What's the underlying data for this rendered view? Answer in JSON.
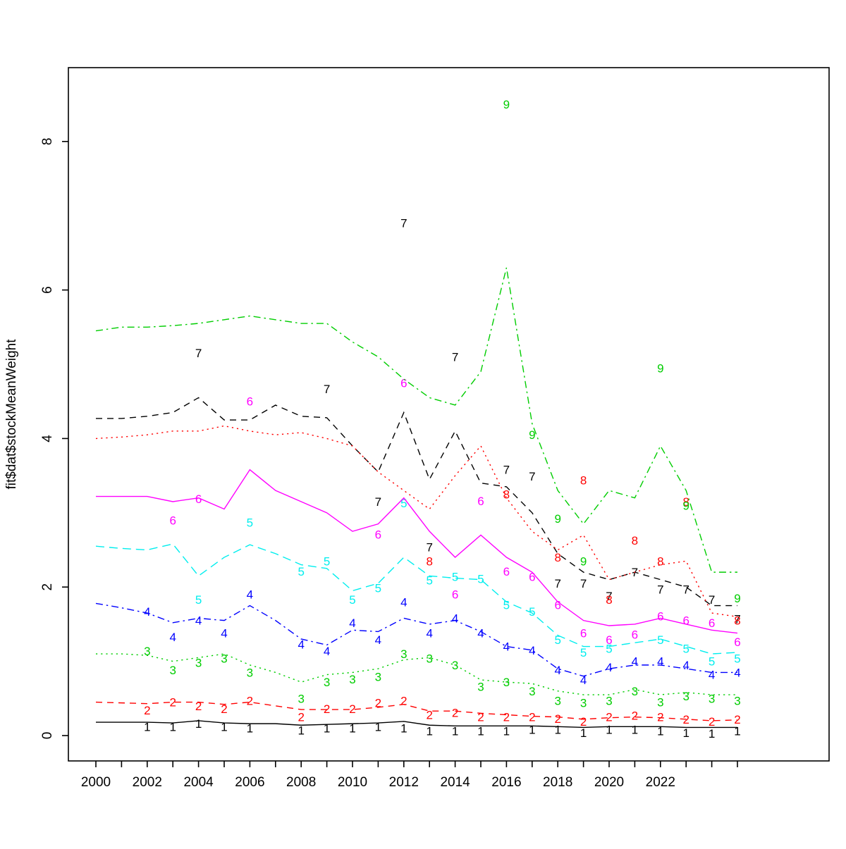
{
  "chart_data": {
    "type": "line",
    "title": "",
    "xlabel": "",
    "ylabel": "fit$dat$stockMeanWeight",
    "axis_color": "#000000",
    "background": "#ffffff",
    "grid": false,
    "legend": "none (series identified by plotted digit labels 1-9)",
    "x_start": 2000,
    "x_end": 2025,
    "xtick_labels": [
      2000,
      2002,
      2004,
      2006,
      2008,
      2010,
      2012,
      2014,
      2016,
      2018,
      2020,
      2022
    ],
    "yticks": [
      0,
      2,
      4,
      6,
      8
    ],
    "xlim": [
      1999,
      2026.5
    ],
    "ylim": [
      -0.35,
      9.0
    ],
    "series": [
      {
        "name": "age-1",
        "label": "1",
        "color": "#000000",
        "linestyle": "solid",
        "line": [
          0.18,
          0.18,
          0.18,
          0.17,
          0.2,
          0.17,
          0.16,
          0.16,
          0.14,
          0.15,
          0.16,
          0.17,
          0.19,
          0.14,
          0.13,
          0.13,
          0.13,
          0.13,
          0.12,
          0.11,
          0.12,
          0.12,
          0.12,
          0.11,
          0.11,
          0.11
        ],
        "obs": [
          [
            2002,
            0.12
          ],
          [
            2003,
            0.12
          ],
          [
            2004,
            0.16
          ],
          [
            2005,
            0.12
          ],
          [
            2006,
            0.1
          ],
          [
            2008,
            0.07
          ],
          [
            2009,
            0.1
          ],
          [
            2010,
            0.1
          ],
          [
            2011,
            0.12
          ],
          [
            2012,
            0.1
          ],
          [
            2013,
            0.06
          ],
          [
            2014,
            0.06
          ],
          [
            2015,
            0.06
          ],
          [
            2016,
            0.06
          ],
          [
            2017,
            0.08
          ],
          [
            2018,
            0.08
          ],
          [
            2019,
            0.04
          ],
          [
            2020,
            0.08
          ],
          [
            2021,
            0.08
          ],
          [
            2022,
            0.06
          ],
          [
            2023,
            0.04
          ],
          [
            2024,
            0.03
          ],
          [
            2025,
            0.06
          ]
        ]
      },
      {
        "name": "age-2",
        "label": "2",
        "color": "#FF0000",
        "linestyle": "dashed",
        "line": [
          0.45,
          0.44,
          0.43,
          0.45,
          0.45,
          0.42,
          0.45,
          0.4,
          0.35,
          0.35,
          0.35,
          0.38,
          0.42,
          0.33,
          0.33,
          0.3,
          0.28,
          0.26,
          0.25,
          0.22,
          0.24,
          0.25,
          0.24,
          0.22,
          0.2,
          0.21
        ],
        "obs": [
          [
            2002,
            0.34
          ],
          [
            2003,
            0.45
          ],
          [
            2004,
            0.4
          ],
          [
            2005,
            0.36
          ],
          [
            2006,
            0.47
          ],
          [
            2008,
            0.25
          ],
          [
            2009,
            0.36
          ],
          [
            2010,
            0.36
          ],
          [
            2011,
            0.44
          ],
          [
            2012,
            0.47
          ],
          [
            2013,
            0.28
          ],
          [
            2014,
            0.31
          ],
          [
            2015,
            0.25
          ],
          [
            2016,
            0.25
          ],
          [
            2017,
            0.25
          ],
          [
            2018,
            0.23
          ],
          [
            2019,
            0.19
          ],
          [
            2020,
            0.25
          ],
          [
            2021,
            0.27
          ],
          [
            2022,
            0.25
          ],
          [
            2023,
            0.22
          ],
          [
            2024,
            0.19
          ],
          [
            2025,
            0.22
          ]
        ]
      },
      {
        "name": "age-3",
        "label": "3",
        "color": "#00CD00",
        "linestyle": "dotted",
        "line": [
          1.1,
          1.1,
          1.08,
          1.0,
          1.05,
          1.1,
          0.95,
          0.85,
          0.72,
          0.82,
          0.85,
          0.9,
          1.02,
          1.05,
          0.95,
          0.75,
          0.72,
          0.7,
          0.6,
          0.55,
          0.55,
          0.62,
          0.55,
          0.58,
          0.55,
          0.55
        ],
        "obs": [
          [
            2002,
            1.14
          ],
          [
            2003,
            0.88
          ],
          [
            2004,
            0.98
          ],
          [
            2005,
            1.04
          ],
          [
            2006,
            0.85
          ],
          [
            2008,
            0.5
          ],
          [
            2009,
            0.72
          ],
          [
            2010,
            0.76
          ],
          [
            2011,
            0.79
          ],
          [
            2012,
            1.1
          ],
          [
            2013,
            1.04
          ],
          [
            2014,
            0.95
          ],
          [
            2015,
            0.66
          ],
          [
            2016,
            0.72
          ],
          [
            2017,
            0.6
          ],
          [
            2018,
            0.47
          ],
          [
            2019,
            0.44
          ],
          [
            2020,
            0.47
          ],
          [
            2021,
            0.6
          ],
          [
            2022,
            0.45
          ],
          [
            2023,
            0.53
          ],
          [
            2024,
            0.5
          ],
          [
            2025,
            0.47
          ]
        ]
      },
      {
        "name": "age-4",
        "label": "4",
        "color": "#0000FF",
        "linestyle": "dashdot",
        "line": [
          1.78,
          1.72,
          1.65,
          1.52,
          1.58,
          1.55,
          1.75,
          1.55,
          1.3,
          1.22,
          1.42,
          1.4,
          1.58,
          1.5,
          1.55,
          1.4,
          1.2,
          1.15,
          0.9,
          0.8,
          0.9,
          0.95,
          0.95,
          0.9,
          0.85,
          0.85
        ],
        "obs": [
          [
            2002,
            1.67
          ],
          [
            2003,
            1.33
          ],
          [
            2004,
            1.55
          ],
          [
            2005,
            1.38
          ],
          [
            2006,
            1.9
          ],
          [
            2008,
            1.23
          ],
          [
            2009,
            1.14
          ],
          [
            2010,
            1.52
          ],
          [
            2011,
            1.29
          ],
          [
            2012,
            1.8
          ],
          [
            2013,
            1.38
          ],
          [
            2014,
            1.58
          ],
          [
            2015,
            1.38
          ],
          [
            2016,
            1.2
          ],
          [
            2017,
            1.15
          ],
          [
            2018,
            0.88
          ],
          [
            2019,
            0.75
          ],
          [
            2020,
            0.92
          ],
          [
            2021,
            1.0
          ],
          [
            2022,
            1.0
          ],
          [
            2023,
            0.95
          ],
          [
            2024,
            0.82
          ],
          [
            2025,
            0.85
          ]
        ]
      },
      {
        "name": "age-5",
        "label": "5",
        "color": "#00EEEE",
        "linestyle": "longdash",
        "line": [
          2.55,
          2.52,
          2.5,
          2.58,
          2.15,
          2.4,
          2.57,
          2.45,
          2.3,
          2.25,
          1.95,
          2.05,
          2.4,
          2.15,
          2.12,
          2.1,
          1.8,
          1.65,
          1.35,
          1.2,
          1.2,
          1.25,
          1.3,
          1.2,
          1.1,
          1.12
        ],
        "obs": [
          [
            2004,
            1.83
          ],
          [
            2006,
            2.87
          ],
          [
            2008,
            2.21
          ],
          [
            2009,
            2.35
          ],
          [
            2010,
            1.83
          ],
          [
            2011,
            1.99
          ],
          [
            2012,
            3.13
          ],
          [
            2013,
            2.09
          ],
          [
            2014,
            2.14
          ],
          [
            2015,
            2.11
          ],
          [
            2016,
            1.76
          ],
          [
            2017,
            1.67
          ],
          [
            2018,
            1.29
          ],
          [
            2019,
            1.12
          ],
          [
            2020,
            1.17
          ],
          [
            2022,
            1.29
          ],
          [
            2023,
            1.17
          ],
          [
            2024,
            1.0
          ],
          [
            2025,
            1.04
          ]
        ]
      },
      {
        "name": "age-6",
        "label": "6",
        "color": "#FF00FF",
        "linestyle": "solid",
        "line": [
          3.22,
          3.22,
          3.22,
          3.15,
          3.2,
          3.05,
          3.58,
          3.3,
          3.15,
          3.0,
          2.75,
          2.85,
          3.2,
          2.75,
          2.4,
          2.7,
          2.4,
          2.2,
          1.8,
          1.55,
          1.48,
          1.5,
          1.58,
          1.5,
          1.42,
          1.38
        ],
        "obs": [
          [
            2003,
            2.9
          ],
          [
            2004,
            3.19
          ],
          [
            2006,
            4.5
          ],
          [
            2011,
            2.71
          ],
          [
            2012,
            4.75
          ],
          [
            2014,
            1.9
          ],
          [
            2015,
            3.16
          ],
          [
            2016,
            2.21
          ],
          [
            2017,
            2.14
          ],
          [
            2018,
            1.76
          ],
          [
            2019,
            1.38
          ],
          [
            2020,
            1.29
          ],
          [
            2021,
            1.36
          ],
          [
            2022,
            1.61
          ],
          [
            2023,
            1.55
          ],
          [
            2024,
            1.52
          ],
          [
            2025,
            1.26
          ]
        ]
      },
      {
        "name": "age-7",
        "label": "7",
        "color": "#000000",
        "linestyle": "dashed",
        "line": [
          4.27,
          4.27,
          4.3,
          4.35,
          4.55,
          4.25,
          4.25,
          4.45,
          4.3,
          4.28,
          3.9,
          3.55,
          4.35,
          3.45,
          4.1,
          3.4,
          3.35,
          3.0,
          2.45,
          2.2,
          2.1,
          2.2,
          2.1,
          2.0,
          1.75,
          1.75
        ],
        "obs": [
          [
            2004,
            5.15
          ],
          [
            2009,
            4.67
          ],
          [
            2011,
            3.15
          ],
          [
            2012,
            6.9
          ],
          [
            2013,
            2.54
          ],
          [
            2014,
            5.1
          ],
          [
            2016,
            3.58
          ],
          [
            2017,
            3.49
          ],
          [
            2018,
            2.05
          ],
          [
            2019,
            2.05
          ],
          [
            2020,
            1.88
          ],
          [
            2021,
            2.2
          ],
          [
            2022,
            1.97
          ],
          [
            2023,
            1.97
          ],
          [
            2024,
            1.83
          ],
          [
            2025,
            1.57
          ]
        ]
      },
      {
        "name": "age-8",
        "label": "8",
        "color": "#FF0000",
        "linestyle": "dotted",
        "line": [
          4.0,
          4.02,
          4.05,
          4.1,
          4.1,
          4.17,
          4.1,
          4.05,
          4.08,
          4.0,
          3.9,
          3.55,
          3.3,
          3.05,
          3.5,
          3.9,
          3.2,
          2.75,
          2.5,
          2.7,
          2.1,
          2.2,
          2.3,
          2.35,
          1.65,
          1.6
        ],
        "obs": [
          [
            2013,
            2.35
          ],
          [
            2016,
            3.25
          ],
          [
            2018,
            2.4
          ],
          [
            2019,
            3.44
          ],
          [
            2020,
            1.83
          ],
          [
            2021,
            2.63
          ],
          [
            2022,
            2.35
          ],
          [
            2023,
            3.15
          ],
          [
            2025,
            1.55
          ]
        ]
      },
      {
        "name": "age-9",
        "label": "9",
        "color": "#00CD00",
        "linestyle": "dashdot",
        "line": [
          5.45,
          5.5,
          5.5,
          5.52,
          5.55,
          5.6,
          5.65,
          5.6,
          5.55,
          5.55,
          5.3,
          5.1,
          4.8,
          4.55,
          4.45,
          4.9,
          6.3,
          4.2,
          3.3,
          2.85,
          3.3,
          3.2,
          3.9,
          3.3,
          2.2,
          2.2
        ],
        "obs": [
          [
            2016,
            8.5
          ],
          [
            2017,
            4.05
          ],
          [
            2018,
            2.92
          ],
          [
            2019,
            2.35
          ],
          [
            2022,
            4.95
          ],
          [
            2023,
            3.1
          ],
          [
            2025,
            1.85
          ]
        ]
      }
    ]
  }
}
